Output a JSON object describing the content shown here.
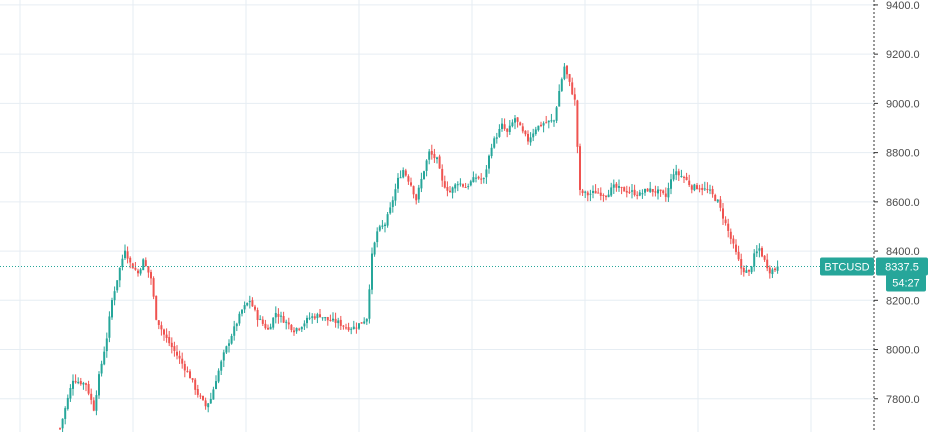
{
  "colors": {
    "up": "#26a69a",
    "down": "#ef5350",
    "grid": "#e6edf3",
    "axis_line": "#333333",
    "price_line": "#26a69a",
    "badge_bg": "#26a69a",
    "background": "#ffffff"
  },
  "price_tag": {
    "symbol": "BTCUSD",
    "price": "8337.5",
    "countdown": "54:27",
    "value": 8337.5
  },
  "chart_data": {
    "type": "candlestick",
    "symbol": "BTCUSD",
    "y_axis": {
      "ylim": [
        7665,
        9420
      ],
      "ticks": [
        7800,
        8000,
        8200,
        8400,
        8600,
        8800,
        9000,
        9200,
        9400
      ],
      "tick_labels": [
        "7800.0",
        "8000.0",
        "8200.0",
        "8400.0",
        "8600.0",
        "8800.0",
        "9000.0",
        "9200.0",
        "9400.0"
      ]
    },
    "grid": true,
    "close_path": [
      [
        0,
        7680
      ],
      [
        3,
        7800
      ],
      [
        5,
        7880
      ],
      [
        7,
        7870
      ],
      [
        10,
        7860
      ],
      [
        13,
        7760
      ],
      [
        15,
        7890
      ],
      [
        18,
        8050
      ],
      [
        20,
        8200
      ],
      [
        23,
        8330
      ],
      [
        25,
        8410
      ],
      [
        27,
        8350
      ],
      [
        30,
        8310
      ],
      [
        32,
        8360
      ],
      [
        35,
        8290
      ],
      [
        37,
        8130
      ],
      [
        40,
        8060
      ],
      [
        43,
        8010
      ],
      [
        46,
        7960
      ],
      [
        50,
        7890
      ],
      [
        53,
        7820
      ],
      [
        56,
        7770
      ],
      [
        58,
        7800
      ],
      [
        60,
        7880
      ],
      [
        63,
        7980
      ],
      [
        66,
        8060
      ],
      [
        70,
        8160
      ],
      [
        73,
        8200
      ],
      [
        76,
        8130
      ],
      [
        80,
        8080
      ],
      [
        83,
        8150
      ],
      [
        86,
        8120
      ],
      [
        90,
        8080
      ],
      [
        93,
        8100
      ],
      [
        96,
        8130
      ],
      [
        100,
        8140
      ],
      [
        103,
        8120
      ],
      [
        107,
        8110
      ],
      [
        110,
        8090
      ],
      [
        113,
        8090
      ],
      [
        116,
        8110
      ],
      [
        118,
        8130
      ],
      [
        120,
        8380
      ],
      [
        122,
        8480
      ],
      [
        125,
        8510
      ],
      [
        127,
        8570
      ],
      [
        130,
        8690
      ],
      [
        132,
        8730
      ],
      [
        135,
        8670
      ],
      [
        137,
        8610
      ],
      [
        140,
        8730
      ],
      [
        142,
        8800
      ],
      [
        145,
        8770
      ],
      [
        147,
        8680
      ],
      [
        150,
        8640
      ],
      [
        153,
        8680
      ],
      [
        156,
        8660
      ],
      [
        160,
        8700
      ],
      [
        163,
        8690
      ],
      [
        166,
        8830
      ],
      [
        170,
        8910
      ],
      [
        172,
        8880
      ],
      [
        175,
        8940
      ],
      [
        178,
        8880
      ],
      [
        180,
        8850
      ],
      [
        183,
        8900
      ],
      [
        186,
        8920
      ],
      [
        190,
        8930
      ],
      [
        192,
        9050
      ],
      [
        194,
        9150
      ],
      [
        196,
        9080
      ],
      [
        198,
        9010
      ],
      [
        200,
        8640
      ],
      [
        203,
        8630
      ],
      [
        206,
        8640
      ],
      [
        210,
        8630
      ],
      [
        213,
        8660
      ],
      [
        216,
        8650
      ],
      [
        220,
        8640
      ],
      [
        223,
        8630
      ],
      [
        226,
        8650
      ],
      [
        230,
        8640
      ],
      [
        233,
        8620
      ],
      [
        236,
        8720
      ],
      [
        240,
        8700
      ],
      [
        243,
        8660
      ],
      [
        246,
        8660
      ],
      [
        250,
        8640
      ],
      [
        253,
        8600
      ],
      [
        256,
        8510
      ],
      [
        259,
        8420
      ],
      [
        262,
        8330
      ],
      [
        265,
        8310
      ],
      [
        267,
        8380
      ],
      [
        269,
        8410
      ],
      [
        271,
        8360
      ],
      [
        273,
        8320
      ],
      [
        276,
        8330
      ]
    ],
    "last_price": 8337.5
  }
}
